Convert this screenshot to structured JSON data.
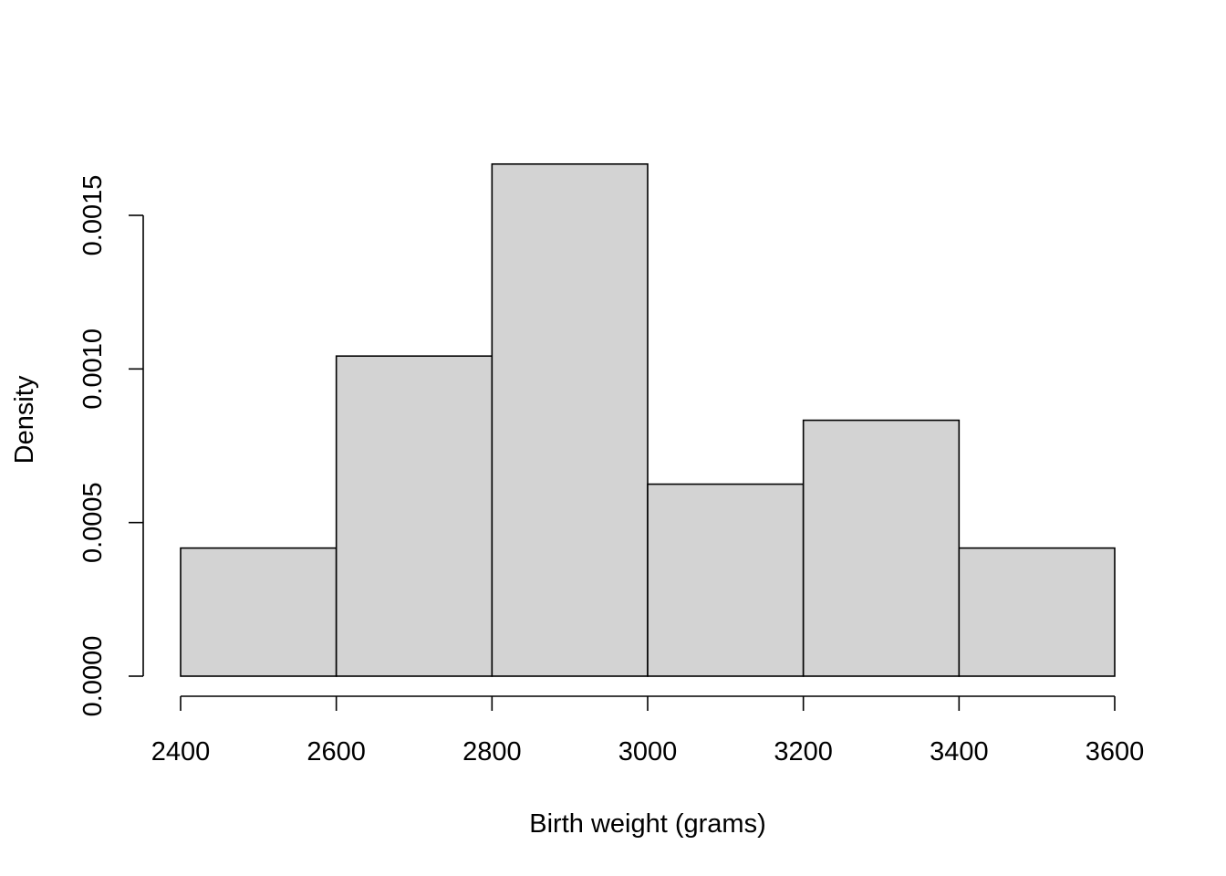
{
  "chart_data": {
    "type": "bar",
    "subtype": "histogram",
    "title": "",
    "xlabel": "Birth weight (grams)",
    "ylabel": "Density",
    "bins": [
      {
        "from": 2400,
        "to": 2600,
        "density": 0.000417
      },
      {
        "from": 2600,
        "to": 2800,
        "density": 0.001042
      },
      {
        "from": 2800,
        "to": 3000,
        "density": 0.001667
      },
      {
        "from": 3000,
        "to": 3200,
        "density": 0.000625
      },
      {
        "from": 3200,
        "to": 3400,
        "density": 0.000833
      },
      {
        "from": 3400,
        "to": 3600,
        "density": 0.000417
      }
    ],
    "xlim": [
      2400,
      3600
    ],
    "ylim": [
      0,
      0.0015
    ],
    "xticks": [
      2400,
      2600,
      2800,
      3000,
      3200,
      3400,
      3600
    ],
    "xtick_labels": [
      "2400",
      "2600",
      "2800",
      "3000",
      "3200",
      "3400",
      "3600"
    ],
    "yticks": [
      0,
      0.0005,
      0.001,
      0.0015
    ],
    "ytick_labels": [
      "0.0000",
      "0.0005",
      "0.0010",
      "0.0015"
    ],
    "grid": false,
    "colors": {
      "bar_fill": "#d3d3d3",
      "bar_stroke": "#000000",
      "background": "#ffffff"
    }
  }
}
